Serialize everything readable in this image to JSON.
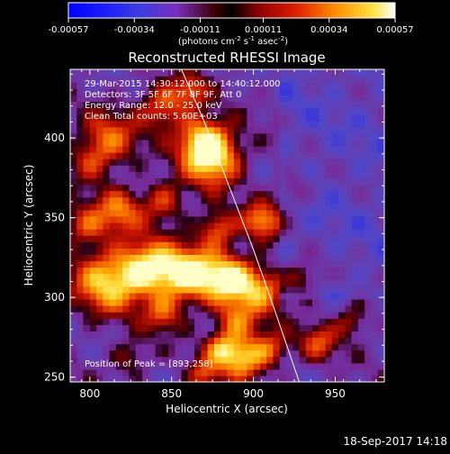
{
  "colorbar": {
    "tick_labels": [
      "-0.00057",
      "-0.00034",
      "-0.00011",
      "0.00011",
      "0.00034",
      "0.00057"
    ],
    "ticks": [
      -0.00057,
      -0.00034,
      -0.00011,
      0.00011,
      0.00034,
      0.00057
    ],
    "units_label": "(photons cm",
    "units_exp1": "-2",
    "units_mid": " s",
    "units_exp2": "-1",
    "units_tail": " asec",
    "units_exp3": "-2",
    "units_close": ")",
    "range": [
      -0.00057,
      0.00057
    ]
  },
  "annotations": {
    "time_range": "29-Mar-2015 14:30:12.000 to 14:40:12.000",
    "detectors": "Detectors: 3F 5F 6F 7F 8F 9F, Att 0",
    "energy": "Energy Range: 12.0 - 25.0 keV",
    "method": "Clean     Total counts: 5.60E+03",
    "peak": "Position of Peak = [893,258]"
  },
  "footer": {
    "timestamp": "18-Sep-2017 14:18"
  },
  "chart_data": {
    "type": "heatmap",
    "title": "Reconstructed RHESSI Image",
    "xlabel": "Heliocentric X (arcsec)",
    "ylabel": "Heliocentric Y (arcsec)",
    "xlim": [
      788,
      980
    ],
    "ylim": [
      247,
      443
    ],
    "xticks": [
      800,
      850,
      900,
      950
    ],
    "yticks": [
      250,
      300,
      350,
      400
    ],
    "xtick_labels": [
      "800",
      "850",
      "900",
      "950"
    ],
    "ytick_labels": [
      "250",
      "300",
      "350",
      "400"
    ],
    "colormap": [
      "#000000",
      "#00008c",
      "#1e2ef0",
      "#3c3cff",
      "#5a4aa0",
      "#7a3c9e",
      "#a030a0",
      "#5a0000",
      "#b00000",
      "#e03000",
      "#ff8000",
      "#ffd020",
      "#ffffc0"
    ],
    "blobs": [
      {
        "x": 875,
        "y": 388,
        "amp": 0.9,
        "w": 12
      },
      {
        "x": 868,
        "y": 400,
        "amp": 0.6,
        "w": 10
      },
      {
        "x": 845,
        "y": 420,
        "amp": 0.55,
        "w": 10
      },
      {
        "x": 862,
        "y": 430,
        "amp": 0.45,
        "w": 7
      },
      {
        "x": 812,
        "y": 400,
        "amp": 0.5,
        "w": 12
      },
      {
        "x": 800,
        "y": 385,
        "amp": 0.35,
        "w": 9
      },
      {
        "x": 818,
        "y": 355,
        "amp": 0.55,
        "w": 10
      },
      {
        "x": 797,
        "y": 345,
        "amp": 0.45,
        "w": 9
      },
      {
        "x": 845,
        "y": 360,
        "amp": 0.45,
        "w": 9
      },
      {
        "x": 878,
        "y": 343,
        "amp": 0.55,
        "w": 8
      },
      {
        "x": 905,
        "y": 348,
        "amp": 0.65,
        "w": 8
      },
      {
        "x": 925,
        "y": 368,
        "amp": 0.3,
        "w": 7
      },
      {
        "x": 810,
        "y": 310,
        "amp": 0.75,
        "w": 14
      },
      {
        "x": 835,
        "y": 318,
        "amp": 0.85,
        "w": 12
      },
      {
        "x": 860,
        "y": 315,
        "amp": 0.9,
        "w": 12
      },
      {
        "x": 885,
        "y": 312,
        "amp": 0.85,
        "w": 11
      },
      {
        "x": 905,
        "y": 305,
        "amp": 0.55,
        "w": 10
      },
      {
        "x": 930,
        "y": 312,
        "amp": 0.4,
        "w": 8
      },
      {
        "x": 845,
        "y": 290,
        "amp": 0.45,
        "w": 8
      },
      {
        "x": 890,
        "y": 285,
        "amp": 0.55,
        "w": 9
      },
      {
        "x": 893,
        "y": 262,
        "amp": 0.75,
        "w": 9
      },
      {
        "x": 880,
        "y": 268,
        "amp": 0.55,
        "w": 7
      },
      {
        "x": 910,
        "y": 268,
        "amp": 0.5,
        "w": 8
      },
      {
        "x": 940,
        "y": 272,
        "amp": 0.45,
        "w": 8
      },
      {
        "x": 960,
        "y": 285,
        "amp": 0.35,
        "w": 7
      },
      {
        "x": 870,
        "y": 252,
        "amp": 0.45,
        "w": 7
      },
      {
        "x": 825,
        "y": 262,
        "amp": 0.3,
        "w": 8
      }
    ],
    "limb": [
      [
        856,
        443
      ],
      [
        870,
        410
      ],
      [
        885,
        370
      ],
      [
        900,
        330
      ],
      [
        912,
        295
      ],
      [
        922,
        265
      ],
      [
        928,
        247
      ]
    ],
    "peak_position": [
      893,
      258
    ]
  }
}
